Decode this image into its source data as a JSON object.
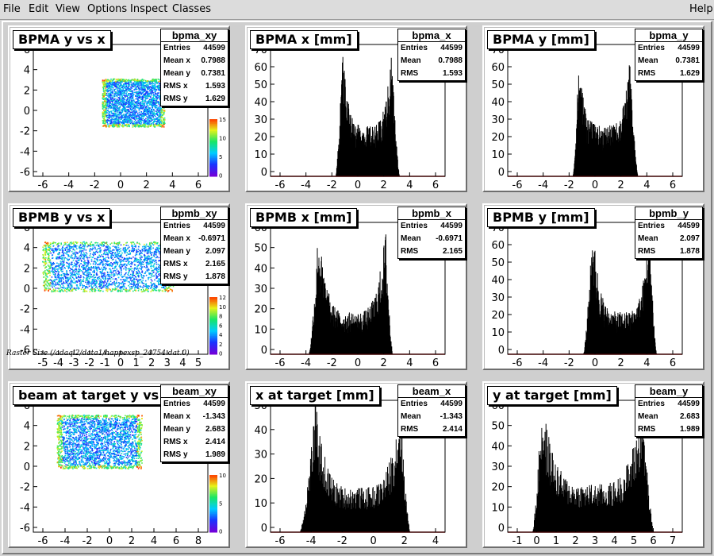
{
  "menu": {
    "file": "File",
    "edit": "Edit",
    "view": "View",
    "options": "Options",
    "inspect": "Inspect",
    "classes": "Classes",
    "help": "Help"
  },
  "raster_label": "Raster Size (/adaql2/data1/happexsp_24754.dat.0)",
  "pads": [
    {
      "title": "BPMA y vs x",
      "stats_name": "bpma_xy",
      "stats": [
        [
          "Entries",
          "44599"
        ],
        [
          "Mean x",
          "0.7988"
        ],
        [
          "Mean y",
          "0.7381"
        ],
        [
          "RMS x",
          "1.593"
        ],
        [
          "RMS y",
          "1.629"
        ]
      ],
      "xticks": [
        "-6",
        "-4",
        "-2",
        "0",
        "2",
        "4",
        "6"
      ],
      "yticks": [
        "6",
        "4",
        "2",
        "0",
        "-2",
        "-4",
        "-6"
      ],
      "zticks": [
        "15",
        "10",
        "5",
        "0"
      ]
    },
    {
      "title": "BPMA x [mm]",
      "stats_name": "bpma_x",
      "stats": [
        [
          "Entries",
          "44599"
        ],
        [
          "Mean",
          "0.7988"
        ],
        [
          "RMS",
          "1.593"
        ]
      ],
      "xticks": [
        "-6",
        "-4",
        "-2",
        "0",
        "2",
        "4",
        "6"
      ],
      "yticks": [
        "70",
        "60",
        "50",
        "40",
        "30",
        "20",
        "10",
        "0"
      ]
    },
    {
      "title": "BPMA y [mm]",
      "stats_name": "bpma_y",
      "stats": [
        [
          "Entries",
          "44599"
        ],
        [
          "Mean",
          "0.7381"
        ],
        [
          "RMS",
          "1.629"
        ]
      ],
      "xticks": [
        "-6",
        "-4",
        "-2",
        "0",
        "2",
        "4",
        "6"
      ],
      "yticks": [
        "70",
        "60",
        "50",
        "40",
        "30",
        "20",
        "10",
        "0"
      ]
    },
    {
      "title": "BPMB y vs x",
      "stats_name": "bpmb_xy",
      "stats": [
        [
          "Entries",
          "44599"
        ],
        [
          "Mean x",
          "-0.6971"
        ],
        [
          "Mean y",
          "2.097"
        ],
        [
          "RMS x",
          "2.165"
        ],
        [
          "RMS y",
          "1.878"
        ]
      ],
      "xticks": [
        "-5",
        "-4",
        "-3",
        "-2",
        "-1",
        "0",
        "1",
        "2",
        "3",
        "4",
        "5"
      ],
      "yticks": [
        "6",
        "4",
        "2",
        "0",
        "-2",
        "-4",
        "-6"
      ],
      "zticks": [
        "12",
        "10",
        "8",
        "6",
        "4",
        "2",
        "0"
      ]
    },
    {
      "title": "BPMB x [mm]",
      "stats_name": "bpmb_x",
      "stats": [
        [
          "Entries",
          "44599"
        ],
        [
          "Mean",
          "-0.6971"
        ],
        [
          "RMS",
          "2.165"
        ]
      ],
      "xticks": [
        "-6",
        "-4",
        "-2",
        "0",
        "2",
        "4",
        "6"
      ],
      "yticks": [
        "60",
        "50",
        "40",
        "30",
        "20",
        "10",
        "0"
      ]
    },
    {
      "title": "BPMB y [mm]",
      "stats_name": "bpmb_y",
      "stats": [
        [
          "Entries",
          "44599"
        ],
        [
          "Mean",
          "2.097"
        ],
        [
          "RMS",
          "1.878"
        ]
      ],
      "xticks": [
        "-6",
        "-4",
        "-2",
        "0",
        "2",
        "4",
        "6"
      ],
      "yticks": [
        "70",
        "60",
        "50",
        "40",
        "30",
        "20",
        "10",
        "0"
      ]
    },
    {
      "title": "beam at target y vs x",
      "stats_name": "beam_xy",
      "stats": [
        [
          "Entries",
          "44599"
        ],
        [
          "Mean x",
          "-1.343"
        ],
        [
          "Mean y",
          "2.683"
        ],
        [
          "RMS x",
          "2.414"
        ],
        [
          "RMS y",
          "1.989"
        ]
      ],
      "xticks": [
        "-6",
        "-4",
        "-2",
        "0",
        "2",
        "4",
        "6",
        "8"
      ],
      "yticks": [
        "6",
        "4",
        "2",
        "0",
        "-2",
        "-4",
        "-6"
      ],
      "zticks": [
        "10",
        "5",
        "0"
      ]
    },
    {
      "title": "x at target [mm]",
      "stats_name": "beam_x",
      "stats": [
        [
          "Entries",
          "44599"
        ],
        [
          "Mean",
          "-1.343"
        ],
        [
          "RMS",
          "2.414"
        ]
      ],
      "xticks": [
        "-6",
        "-4",
        "-2",
        "0",
        "2",
        "4"
      ],
      "yticks": [
        "50",
        "40",
        "30",
        "20",
        "10",
        "0"
      ]
    },
    {
      "title": "y at target [mm]",
      "stats_name": "beam_y",
      "stats": [
        [
          "Entries",
          "44599"
        ],
        [
          "Mean",
          "2.683"
        ],
        [
          "RMS",
          "1.989"
        ]
      ],
      "xticks": [
        "-1",
        "0",
        "1",
        "2",
        "3",
        "4",
        "5",
        "6",
        "7"
      ],
      "yticks": [
        "60",
        "50",
        "40",
        "30",
        "20",
        "10",
        "0"
      ]
    }
  ],
  "chart_data": [
    {
      "type": "heatmap",
      "title": "BPMA y vs x",
      "xlim": [
        -7,
        7
      ],
      "ylim": [
        -7,
        7
      ],
      "region_x": [
        -1.5,
        3.5
      ],
      "region_y": [
        -1.7,
        3.4
      ],
      "zlim": [
        0,
        20
      ]
    },
    {
      "type": "bar",
      "title": "BPMA x [mm]",
      "xlim": [
        -7.5,
        7.5
      ],
      "ylim": [
        0,
        72
      ],
      "shape": {
        "low": -1.9,
        "high": 3.6,
        "peak1": -1.3,
        "peak2": 2.9,
        "peak_val": 64,
        "valley_val": 25
      }
    },
    {
      "type": "bar",
      "title": "BPMA y [mm]",
      "xlim": [
        -7.5,
        7.5
      ],
      "ylim": [
        0,
        80
      ],
      "shape": {
        "low": -1.9,
        "high": 3.7,
        "peak1": -1.4,
        "peak2": 3.0,
        "peak_val": 65,
        "valley_val": 28
      }
    },
    {
      "type": "heatmap",
      "title": "BPMB y vs x",
      "xlim": [
        -5,
        5
      ],
      "ylim": [
        -7,
        7
      ],
      "region_x": [
        -4.5,
        3.0
      ],
      "region_y": [
        -0.3,
        5.0
      ],
      "zlim": [
        0,
        14
      ]
    },
    {
      "type": "bar",
      "title": "BPMB x [mm]",
      "xlim": [
        -7.5,
        7.5
      ],
      "ylim": [
        0,
        62
      ],
      "shape": {
        "low": -4.2,
        "high": 3.0,
        "peak1": -3.4,
        "peak2": 2.4,
        "peak_val": 55,
        "valley_val": 18
      }
    },
    {
      "type": "bar",
      "title": "BPMB y [mm]",
      "xlim": [
        -7.5,
        7.5
      ],
      "ylim": [
        0,
        75
      ],
      "shape": {
        "low": -1.0,
        "high": 5.3,
        "peak1": -0.2,
        "peak2": 4.7,
        "peak_val": 68,
        "valley_val": 22
      }
    },
    {
      "type": "heatmap",
      "title": "beam at target y vs x",
      "xlim": [
        -7,
        8
      ],
      "ylim": [
        -7,
        7
      ],
      "region_x": [
        -5.0,
        2.3
      ],
      "region_y": [
        -0.2,
        5.5
      ],
      "zlim": [
        0,
        14
      ]
    },
    {
      "type": "bar",
      "title": "x at target [mm]",
      "xlim": [
        -7.5,
        5
      ],
      "ylim": [
        0,
        52
      ],
      "shape": {
        "low": -5.4,
        "high": 2.5,
        "peak1": -4.3,
        "peak2": 1.8,
        "peak_val": 48,
        "valley_val": 16
      }
    },
    {
      "type": "bar",
      "title": "y at target [mm]",
      "xlim": [
        -1.6,
        7.6
      ],
      "ylim": [
        0,
        66
      ],
      "shape": {
        "low": -0.3,
        "high": 6.1,
        "peak1": 0.2,
        "peak2": 5.5,
        "peak_val": 62,
        "valley_val": 22
      }
    }
  ]
}
